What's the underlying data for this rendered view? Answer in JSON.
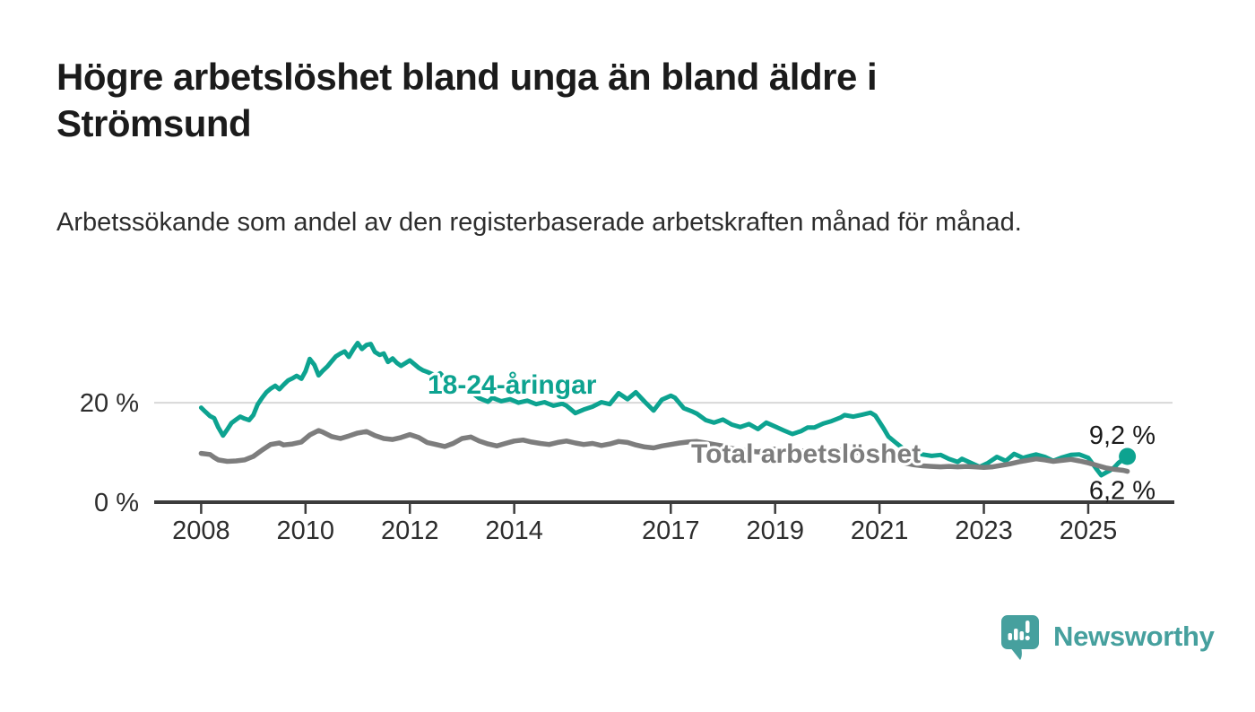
{
  "header": {
    "title": "Högre arbetslöshet bland unga än bland äldre i Strömsund",
    "subtitle": "Arbetssökande som andel av den registerbaserade arbetskraften månad för månad."
  },
  "chart_data": {
    "type": "line",
    "title": "Högre arbetslöshet bland unga än bland äldre i Strömsund",
    "subtitle": "Arbetssökande som andel av den registerbaserade arbetskraften månad för månad.",
    "xlabel": "",
    "ylabel": "",
    "x_unit": "year (monthly observations)",
    "xlim": [
      2007.1,
      2026.65
    ],
    "ylim": [
      0,
      37.5
    ],
    "grid": "single horizontal gridline at 20 %",
    "grid_values": [
      20
    ],
    "legend_position": "inline labels on lines",
    "x_ticks": [
      2008,
      2010,
      2012,
      2014,
      2017,
      2019,
      2021,
      2023,
      2025
    ],
    "y_ticks": [
      {
        "value": 20,
        "label": "20 %"
      },
      {
        "value": 0,
        "label": "0 %"
      }
    ],
    "colors": {
      "axis": "#3c3c3c",
      "gridline": "#d8d8d8",
      "tick_text": "#2d2d2d",
      "value_label_text": "#1a1a1a"
    },
    "series": [
      {
        "name": "18-24-åringar",
        "color": "#0da390",
        "stroke_width": 5,
        "end_dot": true,
        "end_label": "9,2 %",
        "points": [
          [
            2008.0,
            19.0
          ],
          [
            2008.08,
            18.2
          ],
          [
            2008.17,
            17.3
          ],
          [
            2008.25,
            16.9
          ],
          [
            2008.33,
            15.0
          ],
          [
            2008.42,
            13.4
          ],
          [
            2008.5,
            14.6
          ],
          [
            2008.58,
            15.9
          ],
          [
            2008.67,
            16.6
          ],
          [
            2008.75,
            17.2
          ],
          [
            2008.83,
            16.8
          ],
          [
            2008.92,
            16.5
          ],
          [
            2009.0,
            17.5
          ],
          [
            2009.08,
            19.6
          ],
          [
            2009.17,
            21.0
          ],
          [
            2009.25,
            22.1
          ],
          [
            2009.33,
            22.8
          ],
          [
            2009.42,
            23.4
          ],
          [
            2009.5,
            22.7
          ],
          [
            2009.58,
            23.6
          ],
          [
            2009.67,
            24.5
          ],
          [
            2009.75,
            24.9
          ],
          [
            2009.83,
            25.4
          ],
          [
            2009.92,
            24.8
          ],
          [
            2010.0,
            26.3
          ],
          [
            2010.08,
            28.8
          ],
          [
            2010.17,
            27.6
          ],
          [
            2010.25,
            25.5
          ],
          [
            2010.33,
            26.4
          ],
          [
            2010.42,
            27.3
          ],
          [
            2010.5,
            28.3
          ],
          [
            2010.58,
            29.3
          ],
          [
            2010.67,
            29.9
          ],
          [
            2010.75,
            30.3
          ],
          [
            2010.83,
            29.2
          ],
          [
            2010.92,
            30.8
          ],
          [
            2011.0,
            32.0
          ],
          [
            2011.08,
            30.8
          ],
          [
            2011.17,
            31.6
          ],
          [
            2011.25,
            31.8
          ],
          [
            2011.33,
            30.2
          ],
          [
            2011.42,
            29.6
          ],
          [
            2011.5,
            29.9
          ],
          [
            2011.58,
            28.2
          ],
          [
            2011.67,
            28.9
          ],
          [
            2011.75,
            28.0
          ],
          [
            2011.83,
            27.4
          ],
          [
            2011.92,
            28.0
          ],
          [
            2012.0,
            28.5
          ],
          [
            2012.08,
            27.8
          ],
          [
            2012.17,
            27.0
          ],
          [
            2012.25,
            26.5
          ],
          [
            2012.33,
            26.2
          ],
          [
            2012.42,
            25.8
          ],
          [
            2012.5,
            25.4
          ],
          [
            2012.58,
            25.9
          ],
          [
            2012.67,
            24.9
          ],
          [
            2012.75,
            24.2
          ],
          [
            2012.83,
            23.6
          ],
          [
            2012.92,
            23.0
          ],
          [
            2013.0,
            23.5
          ],
          [
            2013.17,
            22.2
          ],
          [
            2013.33,
            20.9
          ],
          [
            2013.5,
            20.2
          ],
          [
            2013.58,
            21.0
          ],
          [
            2013.75,
            20.3
          ],
          [
            2013.92,
            20.7
          ],
          [
            2014.08,
            20.0
          ],
          [
            2014.25,
            20.4
          ],
          [
            2014.42,
            19.7
          ],
          [
            2014.58,
            20.1
          ],
          [
            2014.75,
            19.4
          ],
          [
            2014.92,
            19.8
          ],
          [
            2015.0,
            19.4
          ],
          [
            2015.17,
            17.9
          ],
          [
            2015.33,
            18.6
          ],
          [
            2015.5,
            19.2
          ],
          [
            2015.67,
            20.1
          ],
          [
            2015.83,
            19.7
          ],
          [
            2016.0,
            21.9
          ],
          [
            2016.17,
            20.7
          ],
          [
            2016.33,
            22.1
          ],
          [
            2016.5,
            20.2
          ],
          [
            2016.67,
            18.4
          ],
          [
            2016.83,
            20.6
          ],
          [
            2017.0,
            21.4
          ],
          [
            2017.08,
            21.0
          ],
          [
            2017.25,
            18.9
          ],
          [
            2017.42,
            18.2
          ],
          [
            2017.5,
            17.8
          ],
          [
            2017.67,
            16.5
          ],
          [
            2017.83,
            16.0
          ],
          [
            2018.0,
            16.6
          ],
          [
            2018.17,
            15.6
          ],
          [
            2018.33,
            15.1
          ],
          [
            2018.5,
            15.7
          ],
          [
            2018.67,
            14.7
          ],
          [
            2018.83,
            16.0
          ],
          [
            2019.0,
            15.2
          ],
          [
            2019.17,
            14.4
          ],
          [
            2019.33,
            13.7
          ],
          [
            2019.5,
            14.3
          ],
          [
            2019.62,
            15.0
          ],
          [
            2019.75,
            15.0
          ],
          [
            2019.92,
            15.8
          ],
          [
            2020.08,
            16.3
          ],
          [
            2020.25,
            17.0
          ],
          [
            2020.33,
            17.5
          ],
          [
            2020.5,
            17.2
          ],
          [
            2020.67,
            17.6
          ],
          [
            2020.83,
            18.0
          ],
          [
            2020.92,
            17.4
          ],
          [
            2021.08,
            14.8
          ],
          [
            2021.17,
            13.2
          ],
          [
            2021.33,
            11.8
          ],
          [
            2021.5,
            10.4
          ],
          [
            2021.67,
            9.9
          ],
          [
            2021.83,
            9.6
          ],
          [
            2022.0,
            9.3
          ],
          [
            2022.17,
            9.5
          ],
          [
            2022.33,
            8.7
          ],
          [
            2022.5,
            8.1
          ],
          [
            2022.58,
            8.7
          ],
          [
            2022.75,
            7.9
          ],
          [
            2022.92,
            7.1
          ],
          [
            2023.08,
            7.9
          ],
          [
            2023.25,
            9.1
          ],
          [
            2023.42,
            8.3
          ],
          [
            2023.58,
            9.7
          ],
          [
            2023.75,
            8.9
          ],
          [
            2023.92,
            9.4
          ],
          [
            2024.0,
            9.6
          ],
          [
            2024.17,
            9.1
          ],
          [
            2024.33,
            8.3
          ],
          [
            2024.5,
            9.0
          ],
          [
            2024.67,
            9.5
          ],
          [
            2024.83,
            9.6
          ],
          [
            2025.0,
            8.9
          ],
          [
            2025.08,
            7.8
          ],
          [
            2025.17,
            6.5
          ],
          [
            2025.25,
            5.4
          ],
          [
            2025.33,
            5.9
          ],
          [
            2025.42,
            6.4
          ],
          [
            2025.5,
            7.0
          ],
          [
            2025.58,
            7.9
          ],
          [
            2025.67,
            8.6
          ],
          [
            2025.75,
            9.2
          ]
        ]
      },
      {
        "name": "Total arbetslöshet",
        "color": "#7d7d7d",
        "stroke_width": 5.5,
        "end_dot": false,
        "end_label": "6,2 %",
        "points": [
          [
            2008.0,
            9.8
          ],
          [
            2008.17,
            9.6
          ],
          [
            2008.25,
            9.0
          ],
          [
            2008.33,
            8.5
          ],
          [
            2008.5,
            8.2
          ],
          [
            2008.67,
            8.3
          ],
          [
            2008.83,
            8.5
          ],
          [
            2009.0,
            9.2
          ],
          [
            2009.17,
            10.5
          ],
          [
            2009.33,
            11.6
          ],
          [
            2009.5,
            11.9
          ],
          [
            2009.58,
            11.5
          ],
          [
            2009.75,
            11.7
          ],
          [
            2009.92,
            12.1
          ],
          [
            2010.08,
            13.5
          ],
          [
            2010.25,
            14.4
          ],
          [
            2010.33,
            14.1
          ],
          [
            2010.5,
            13.2
          ],
          [
            2010.67,
            12.8
          ],
          [
            2010.83,
            13.3
          ],
          [
            2011.0,
            13.9
          ],
          [
            2011.17,
            14.2
          ],
          [
            2011.33,
            13.4
          ],
          [
            2011.5,
            12.8
          ],
          [
            2011.67,
            12.6
          ],
          [
            2011.83,
            13.0
          ],
          [
            2012.0,
            13.6
          ],
          [
            2012.17,
            13.0
          ],
          [
            2012.33,
            12.0
          ],
          [
            2012.5,
            11.6
          ],
          [
            2012.67,
            11.2
          ],
          [
            2012.83,
            11.8
          ],
          [
            2013.0,
            12.8
          ],
          [
            2013.17,
            13.1
          ],
          [
            2013.33,
            12.3
          ],
          [
            2013.5,
            11.7
          ],
          [
            2013.67,
            11.3
          ],
          [
            2013.83,
            11.8
          ],
          [
            2014.0,
            12.3
          ],
          [
            2014.17,
            12.5
          ],
          [
            2014.33,
            12.1
          ],
          [
            2014.5,
            11.8
          ],
          [
            2014.67,
            11.6
          ],
          [
            2014.83,
            12.0
          ],
          [
            2015.0,
            12.3
          ],
          [
            2015.17,
            11.9
          ],
          [
            2015.33,
            11.6
          ],
          [
            2015.5,
            11.8
          ],
          [
            2015.67,
            11.4
          ],
          [
            2015.83,
            11.7
          ],
          [
            2016.0,
            12.2
          ],
          [
            2016.17,
            12.0
          ],
          [
            2016.33,
            11.5
          ],
          [
            2016.5,
            11.1
          ],
          [
            2016.67,
            10.9
          ],
          [
            2016.83,
            11.3
          ],
          [
            2017.0,
            11.6
          ],
          [
            2017.17,
            11.9
          ],
          [
            2017.33,
            12.1
          ],
          [
            2017.5,
            12.2
          ],
          [
            2017.67,
            11.9
          ],
          [
            2017.83,
            11.6
          ],
          [
            2018.0,
            11.3
          ],
          [
            2018.17,
            10.8
          ],
          [
            2018.33,
            10.5
          ],
          [
            2018.5,
            10.3
          ],
          [
            2018.67,
            10.1
          ],
          [
            2018.83,
            10.4
          ],
          [
            2019.0,
            10.7
          ],
          [
            2019.17,
            10.4
          ],
          [
            2019.33,
            10.2
          ],
          [
            2019.5,
            10.3
          ],
          [
            2019.67,
            10.1
          ],
          [
            2019.83,
            10.2
          ],
          [
            2020.0,
            10.4
          ],
          [
            2020.17,
            10.6
          ],
          [
            2020.33,
            10.4
          ],
          [
            2020.5,
            10.1
          ],
          [
            2020.67,
            9.9
          ],
          [
            2020.83,
            9.7
          ],
          [
            2021.0,
            9.5
          ],
          [
            2021.17,
            9.0
          ],
          [
            2021.33,
            8.4
          ],
          [
            2021.5,
            7.8
          ],
          [
            2021.67,
            7.5
          ],
          [
            2021.83,
            7.3
          ],
          [
            2022.0,
            7.2
          ],
          [
            2022.17,
            7.1
          ],
          [
            2022.33,
            7.2
          ],
          [
            2022.5,
            7.1
          ],
          [
            2022.67,
            7.2
          ],
          [
            2022.83,
            7.1
          ],
          [
            2023.0,
            7.0
          ],
          [
            2023.17,
            7.1
          ],
          [
            2023.33,
            7.4
          ],
          [
            2023.5,
            7.7
          ],
          [
            2023.67,
            8.1
          ],
          [
            2023.83,
            8.4
          ],
          [
            2024.0,
            8.7
          ],
          [
            2024.17,
            8.5
          ],
          [
            2024.33,
            8.2
          ],
          [
            2024.5,
            8.4
          ],
          [
            2024.67,
            8.6
          ],
          [
            2024.83,
            8.3
          ],
          [
            2025.0,
            7.9
          ],
          [
            2025.17,
            7.4
          ],
          [
            2025.33,
            6.9
          ],
          [
            2025.5,
            6.6
          ],
          [
            2025.67,
            6.4
          ],
          [
            2025.75,
            6.2
          ]
        ]
      }
    ]
  },
  "footer": {
    "brand": "Newsworthy",
    "logo_icon": "bar-chart-speech-bubble-icon",
    "logo_color": "#46a09e"
  }
}
